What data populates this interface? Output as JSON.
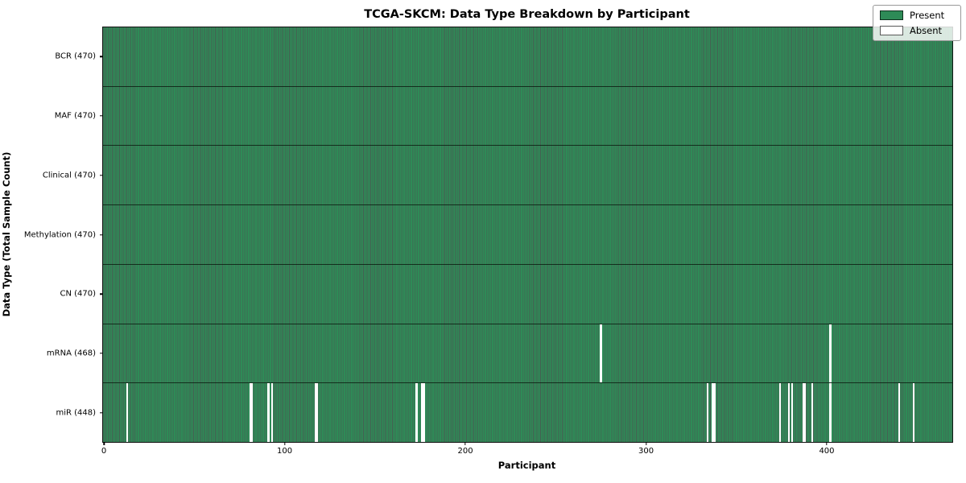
{
  "chart_data": {
    "type": "heatmap",
    "title": "TCGA-SKCM: Data Type Breakdown by Participant",
    "xlabel": "Participant",
    "ylabel": "Data Type (Total Sample Count)",
    "n_participants": 470,
    "x_ticks": [
      0,
      100,
      200,
      300,
      400
    ],
    "xlim": [
      0,
      470
    ],
    "grid": false,
    "legend_position": "upper right",
    "rows": [
      {
        "label": "BCR (470)",
        "data_type": "BCR",
        "present_count": 470,
        "absent_participants": []
      },
      {
        "label": "MAF (470)",
        "data_type": "MAF",
        "present_count": 470,
        "absent_participants": []
      },
      {
        "label": "Clinical (470)",
        "data_type": "Clinical",
        "present_count": 470,
        "absent_participants": []
      },
      {
        "label": "Methylation (470)",
        "data_type": "Methylation",
        "present_count": 470,
        "absent_participants": []
      },
      {
        "label": "CN (470)",
        "data_type": "CN",
        "present_count": 470,
        "absent_participants": []
      },
      {
        "label": "mRNA (468)",
        "data_type": "mRNA",
        "present_count": 468,
        "absent_participants": [
          275,
          402
        ]
      },
      {
        "label": "miR (448)",
        "data_type": "miR",
        "present_count": 448,
        "absent_participants": [
          13,
          81,
          82,
          91,
          93,
          117,
          118,
          173,
          176,
          177,
          334,
          337,
          338,
          374,
          379,
          381,
          387,
          388,
          392,
          402,
          440,
          448
        ]
      }
    ],
    "legend": [
      {
        "label": "Present",
        "color": "#2e8b57"
      },
      {
        "label": "Absent",
        "color": "#ffffff"
      }
    ],
    "colors": {
      "present": "#2e8b57",
      "absent": "#ffffff",
      "bar_edge": "#0a2818",
      "spine": "#111111",
      "text": "#000000"
    }
  }
}
